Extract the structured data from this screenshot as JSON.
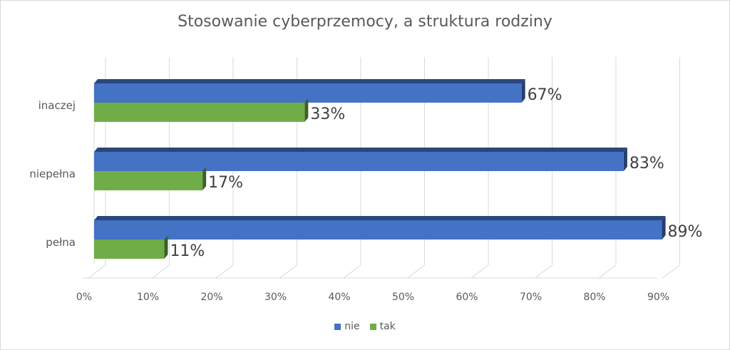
{
  "chart_data": {
    "type": "bar",
    "orientation": "horizontal",
    "title": "Stosowanie cyberprzemocy, a struktura rodziny",
    "categories": [
      "inaczej",
      "niepełna",
      "pełna"
    ],
    "series": [
      {
        "name": "nie",
        "values": [
          67,
          83,
          89
        ],
        "labels": [
          "67%",
          "83%",
          "89%"
        ],
        "color": "#4472c4"
      },
      {
        "name": "tak",
        "values": [
          33,
          17,
          11
        ],
        "labels": [
          "33%",
          "17%",
          "11%"
        ],
        "color": "#70ad47"
      }
    ],
    "x_ticks": [
      "0%",
      "10%",
      "20%",
      "30%",
      "40%",
      "50%",
      "60%",
      "70%",
      "80%",
      "90%"
    ],
    "xlim": [
      0,
      90
    ],
    "grid": true,
    "legend_position": "bottom"
  }
}
